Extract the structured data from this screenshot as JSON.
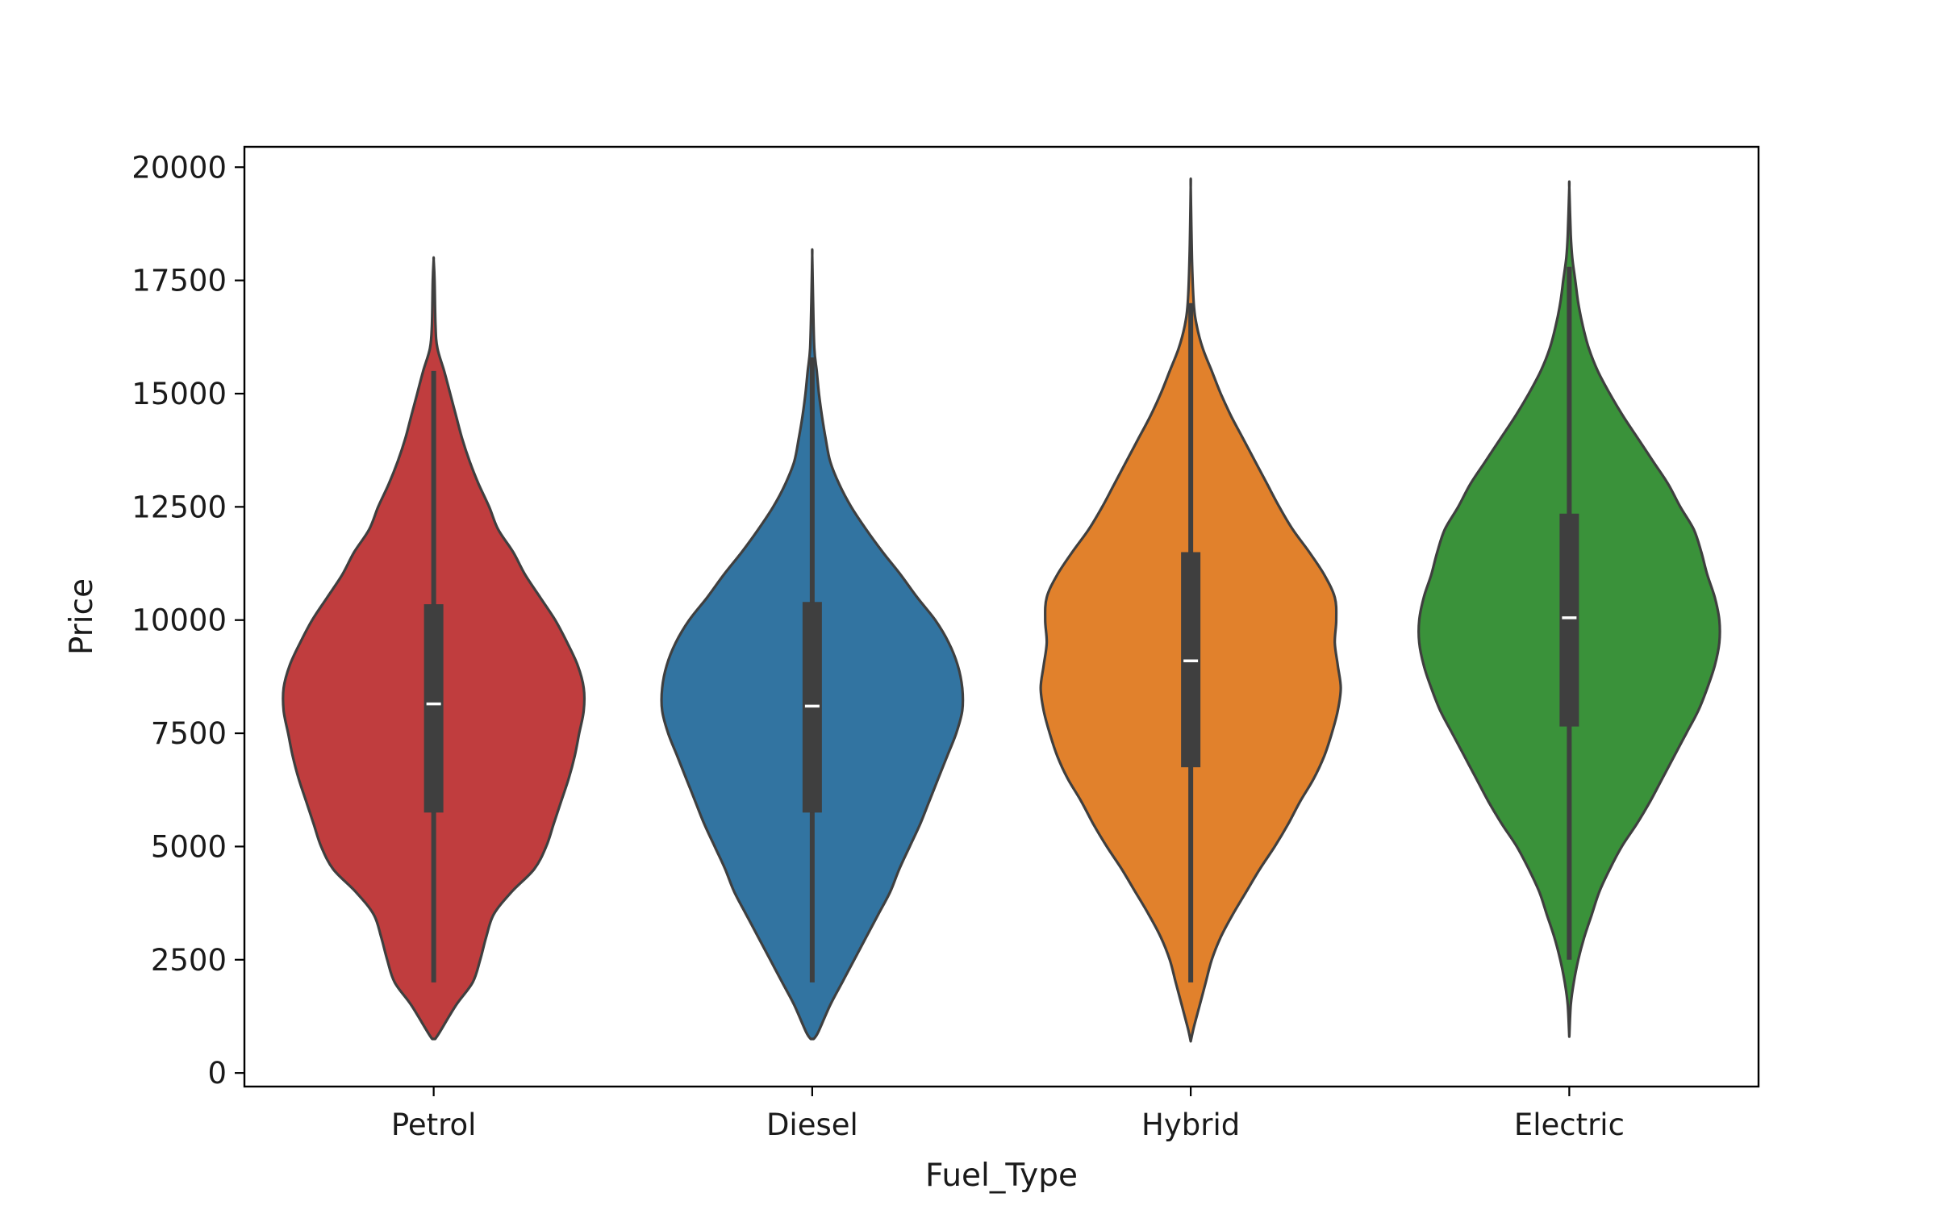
{
  "chart_data": {
    "type": "violin",
    "xlabel": "Fuel_Type",
    "ylabel": "Price",
    "ylim": [
      -300,
      20450
    ],
    "yticks": [
      0,
      2500,
      5000,
      7500,
      10000,
      12500,
      15000,
      17500,
      20000
    ],
    "grid": false,
    "categories": [
      "Petrol",
      "Diesel",
      "Hybrid",
      "Electric"
    ],
    "series": [
      {
        "category": "Petrol",
        "color": "#c03d3e",
        "whisker_low": 2000,
        "q1": 5750,
        "median": 8150,
        "q3": 10350,
        "whisker_high": 15500,
        "density_min": 750,
        "density_max": 17950,
        "profile": [
          [
            750,
            0.01
          ],
          [
            900,
            0.04
          ],
          [
            1500,
            0.15
          ],
          [
            2000,
            0.26
          ],
          [
            2500,
            0.31
          ],
          [
            3000,
            0.35
          ],
          [
            3500,
            0.4
          ],
          [
            4000,
            0.52
          ],
          [
            4500,
            0.67
          ],
          [
            5000,
            0.75
          ],
          [
            5500,
            0.8
          ],
          [
            6000,
            0.85
          ],
          [
            6500,
            0.9
          ],
          [
            7000,
            0.94
          ],
          [
            7500,
            0.97
          ],
          [
            8000,
            1.0
          ],
          [
            8500,
            1.0
          ],
          [
            9000,
            0.96
          ],
          [
            9500,
            0.89
          ],
          [
            10000,
            0.81
          ],
          [
            10500,
            0.71
          ],
          [
            11000,
            0.61
          ],
          [
            11500,
            0.53
          ],
          [
            12000,
            0.43
          ],
          [
            12500,
            0.37
          ],
          [
            13000,
            0.3
          ],
          [
            13500,
            0.24
          ],
          [
            14000,
            0.19
          ],
          [
            14500,
            0.15
          ],
          [
            15000,
            0.11
          ],
          [
            15500,
            0.07
          ],
          [
            16000,
            0.025
          ],
          [
            16500,
            0.012
          ],
          [
            17500,
            0.006
          ],
          [
            17950,
            0.0
          ]
        ]
      },
      {
        "category": "Diesel",
        "color": "#3274a1",
        "whisker_low": 2000,
        "q1": 5750,
        "median": 8100,
        "q3": 10400,
        "whisker_high": 15800,
        "density_min": 750,
        "density_max": 18050,
        "profile": [
          [
            750,
            0.01
          ],
          [
            900,
            0.04
          ],
          [
            1500,
            0.12
          ],
          [
            2000,
            0.2
          ],
          [
            2500,
            0.28
          ],
          [
            3000,
            0.36
          ],
          [
            3500,
            0.44
          ],
          [
            4000,
            0.52
          ],
          [
            4500,
            0.58
          ],
          [
            5000,
            0.65
          ],
          [
            5500,
            0.72
          ],
          [
            6000,
            0.78
          ],
          [
            6500,
            0.84
          ],
          [
            7000,
            0.9
          ],
          [
            7500,
            0.96
          ],
          [
            8000,
            1.0
          ],
          [
            8500,
            1.0
          ],
          [
            9000,
            0.97
          ],
          [
            9500,
            0.91
          ],
          [
            10000,
            0.82
          ],
          [
            10500,
            0.7
          ],
          [
            11000,
            0.59
          ],
          [
            11500,
            0.47
          ],
          [
            12000,
            0.36
          ],
          [
            12500,
            0.26
          ],
          [
            13000,
            0.18
          ],
          [
            13500,
            0.12
          ],
          [
            14000,
            0.09
          ],
          [
            14500,
            0.065
          ],
          [
            15000,
            0.045
          ],
          [
            15500,
            0.03
          ],
          [
            16000,
            0.014
          ],
          [
            17000,
            0.006
          ],
          [
            18050,
            0.0
          ]
        ]
      },
      {
        "category": "Hybrid",
        "color": "#e1812c",
        "whisker_low": 2000,
        "q1": 6750,
        "median": 9100,
        "q3": 11500,
        "whisker_high": 17000,
        "density_min": 700,
        "density_max": 19550,
        "profile": [
          [
            700,
            0.0
          ],
          [
            1000,
            0.02
          ],
          [
            1500,
            0.06
          ],
          [
            2000,
            0.1
          ],
          [
            2500,
            0.14
          ],
          [
            3000,
            0.2
          ],
          [
            3500,
            0.28
          ],
          [
            4000,
            0.37
          ],
          [
            4500,
            0.46
          ],
          [
            5000,
            0.56
          ],
          [
            5500,
            0.65
          ],
          [
            6000,
            0.73
          ],
          [
            6500,
            0.82
          ],
          [
            7000,
            0.89
          ],
          [
            7500,
            0.94
          ],
          [
            8000,
            0.98
          ],
          [
            8500,
            1.0
          ],
          [
            9000,
            0.98
          ],
          [
            9500,
            0.96
          ],
          [
            10000,
            0.97
          ],
          [
            10500,
            0.96
          ],
          [
            11000,
            0.89
          ],
          [
            11500,
            0.79
          ],
          [
            12000,
            0.68
          ],
          [
            12500,
            0.59
          ],
          [
            13000,
            0.51
          ],
          [
            13500,
            0.43
          ],
          [
            14000,
            0.35
          ],
          [
            14500,
            0.27
          ],
          [
            15000,
            0.2
          ],
          [
            15500,
            0.14
          ],
          [
            16000,
            0.08
          ],
          [
            16500,
            0.04
          ],
          [
            17000,
            0.02
          ],
          [
            18000,
            0.008
          ],
          [
            19550,
            0.0
          ]
        ]
      },
      {
        "category": "Electric",
        "color": "#3a923a",
        "whisker_low": 2500,
        "q1": 7650,
        "median": 10050,
        "q3": 12350,
        "whisker_high": 17800,
        "density_min": 800,
        "density_max": 19550,
        "profile": [
          [
            800,
            0.0
          ],
          [
            1500,
            0.01
          ],
          [
            2000,
            0.03
          ],
          [
            2500,
            0.06
          ],
          [
            3000,
            0.1
          ],
          [
            3500,
            0.15
          ],
          [
            4000,
            0.2
          ],
          [
            4500,
            0.27
          ],
          [
            5000,
            0.35
          ],
          [
            5500,
            0.45
          ],
          [
            6000,
            0.54
          ],
          [
            6500,
            0.62
          ],
          [
            7000,
            0.7
          ],
          [
            7500,
            0.78
          ],
          [
            8000,
            0.86
          ],
          [
            8500,
            0.92
          ],
          [
            9000,
            0.97
          ],
          [
            9500,
            1.0
          ],
          [
            10000,
            1.0
          ],
          [
            10500,
            0.97
          ],
          [
            11000,
            0.92
          ],
          [
            11500,
            0.88
          ],
          [
            12000,
            0.83
          ],
          [
            12500,
            0.74
          ],
          [
            13000,
            0.66
          ],
          [
            13500,
            0.56
          ],
          [
            14000,
            0.46
          ],
          [
            14500,
            0.36
          ],
          [
            15000,
            0.27
          ],
          [
            15500,
            0.19
          ],
          [
            16000,
            0.13
          ],
          [
            16500,
            0.09
          ],
          [
            17000,
            0.06
          ],
          [
            17500,
            0.04
          ],
          [
            18000,
            0.02
          ],
          [
            18500,
            0.01
          ],
          [
            19550,
            0.0
          ]
        ]
      }
    ]
  }
}
